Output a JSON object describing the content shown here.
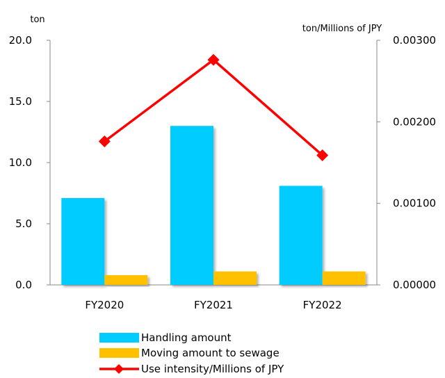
{
  "chart_data": {
    "type": "bar",
    "categories": [
      "FY2020",
      "FY2021",
      "FY2022"
    ],
    "series": [
      {
        "name": "Handling amount",
        "kind": "bar",
        "axis": "left",
        "color": "#00ccff",
        "values": [
          7.1,
          13.0,
          8.1
        ]
      },
      {
        "name": "Moving amount to sewage",
        "kind": "bar",
        "axis": "left",
        "color": "#ffc000",
        "values": [
          0.8,
          1.1,
          1.1
        ]
      },
      {
        "name": "Use intensity/Millions of JPY",
        "kind": "line",
        "axis": "right",
        "color": "#ff0000",
        "marker": "diamond",
        "values": [
          0.00176,
          0.00276,
          0.00159
        ]
      }
    ],
    "y_left": {
      "unit": "ton",
      "ticks": [
        "0.0",
        "5.0",
        "10.0",
        "15.0",
        "20.0"
      ],
      "range": [
        0,
        20
      ]
    },
    "y_right": {
      "unit": "ton/Millions of JPY",
      "ticks": [
        "0.00000",
        "0.00100",
        "0.00200",
        "0.00300"
      ],
      "range": [
        0,
        0.003
      ]
    },
    "legend": {
      "placement": "bottom"
    },
    "grid": false
  }
}
